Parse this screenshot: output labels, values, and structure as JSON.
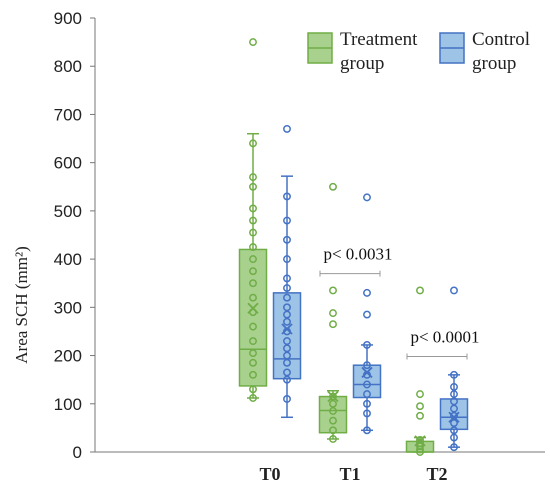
{
  "chart_data": {
    "type": "box",
    "title": "",
    "xlabel": "",
    "ylabel": "Area SCH (mm²)",
    "ylim": [
      0,
      900
    ],
    "yticks": [
      0,
      100,
      200,
      300,
      400,
      500,
      600,
      700,
      800,
      900
    ],
    "categories": [
      "T0",
      "T1",
      "T2"
    ],
    "grid": false,
    "legend_position": "top-right",
    "series": [
      {
        "name": "Treatment group",
        "color": "#70AD47",
        "fill": "#A9D18E",
        "boxes": [
          {
            "category": "T0",
            "whisker_low": 112,
            "q1": 137,
            "median": 213,
            "mean": 298,
            "q3": 420,
            "whisker_high": 660,
            "points": [
              112,
              130,
              160,
              185,
              205,
              230,
              260,
              290,
              320,
              350,
              375,
              400,
              425,
              455,
              480,
              505,
              550,
              570,
              640,
              850
            ]
          },
          {
            "category": "T1",
            "whisker_low": 27,
            "q1": 40,
            "median": 86,
            "mean": 115,
            "q3": 115,
            "whisker_high": 127,
            "points": [
              27,
              45,
              65,
              85,
              100,
              115,
              265,
              288,
              335,
              550
            ]
          },
          {
            "category": "T2",
            "whisker_low": 0,
            "q1": 0,
            "median": 0,
            "mean": 23,
            "q3": 22,
            "whisker_high": 30,
            "points": [
              0,
              5,
              12,
              18,
              25,
              75,
              95,
              120,
              335
            ]
          }
        ]
      },
      {
        "name": "Control group",
        "color": "#4472C4",
        "fill": "#9DC3E6",
        "boxes": [
          {
            "category": "T0",
            "whisker_low": 72,
            "q1": 152,
            "median": 193,
            "mean": 255,
            "q3": 330,
            "whisker_high": 572,
            "points": [
              110,
              150,
              165,
              185,
              200,
              215,
              230,
              250,
              270,
              285,
              300,
              320,
              340,
              360,
              400,
              440,
              480,
              530,
              670
            ]
          },
          {
            "category": "T1",
            "whisker_low": 45,
            "q1": 113,
            "median": 140,
            "mean": 165,
            "q3": 180,
            "whisker_high": 222,
            "points": [
              45,
              80,
              100,
              120,
              140,
              160,
              180,
              222,
              285,
              330,
              528
            ]
          },
          {
            "category": "T2",
            "whisker_low": 10,
            "q1": 47,
            "median": 72,
            "mean": 72,
            "q3": 110,
            "whisker_high": 160,
            "points": [
              10,
              30,
              45,
              60,
              75,
              90,
              105,
              120,
              135,
              160,
              335
            ]
          }
        ]
      }
    ],
    "annotations": [
      {
        "text": "p< 0.0031",
        "category": "T1",
        "y": 370
      },
      {
        "text": "p< 0.0001",
        "category": "T2",
        "y": 198
      }
    ]
  }
}
